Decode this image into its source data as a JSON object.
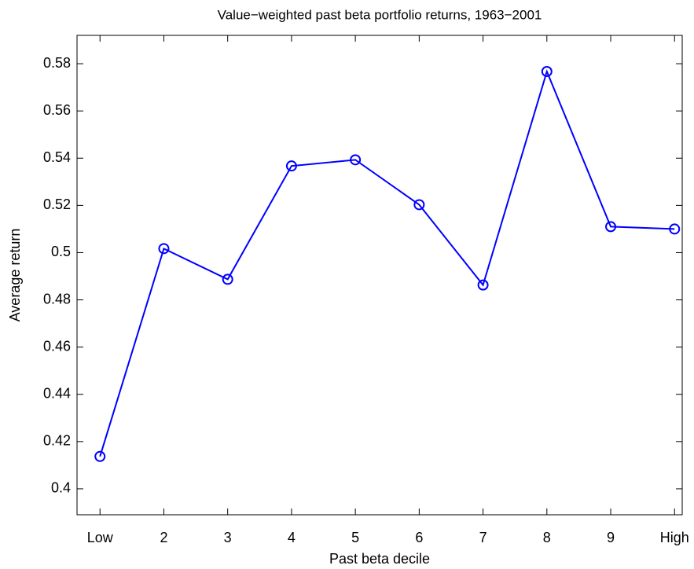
{
  "chart_data": {
    "type": "line",
    "title": "Value−weighted past beta portfolio returns, 1963−2001",
    "x_label": "Past beta decile",
    "y_label": "Average return",
    "categories": [
      "Low",
      "2",
      "3",
      "4",
      "5",
      "6",
      "7",
      "8",
      "9",
      "High"
    ],
    "series": [
      {
        "name": "Average return",
        "color": "#0000ff",
        "values": [
          0.4137,
          0.5017,
          0.4887,
          0.5367,
          0.5393,
          0.5203,
          0.4863,
          0.5767,
          0.511,
          0.51
        ]
      }
    ],
    "ylim": [
      0.389,
      0.592
    ],
    "yticks": [
      0.4,
      0.42,
      0.44,
      0.46,
      0.48,
      0.5,
      0.52,
      0.54,
      0.56,
      0.58
    ],
    "grid": false
  }
}
